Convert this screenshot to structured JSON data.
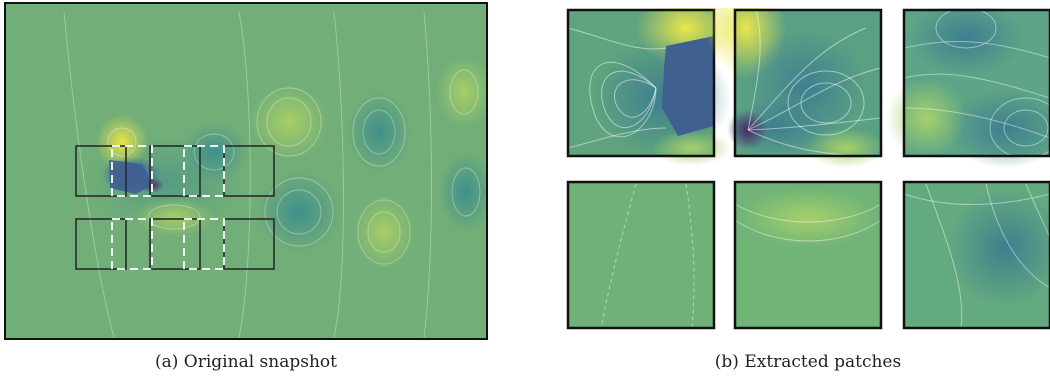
{
  "figure": {
    "caption_a": "(a) Original snapshot",
    "caption_b": "(b) Extracted patches"
  },
  "colors": {
    "background_field": "#6fae76",
    "frame": "#111111",
    "patch_box": "#2b2b2b",
    "dashed_box": "#ffffff",
    "dark_vortex": "#3f5f8f",
    "purple_core": "#5a2f73",
    "yellow_high": "#e6e34a",
    "light_green": "#9acb6a",
    "teal_low": "#4f9a8a"
  }
}
